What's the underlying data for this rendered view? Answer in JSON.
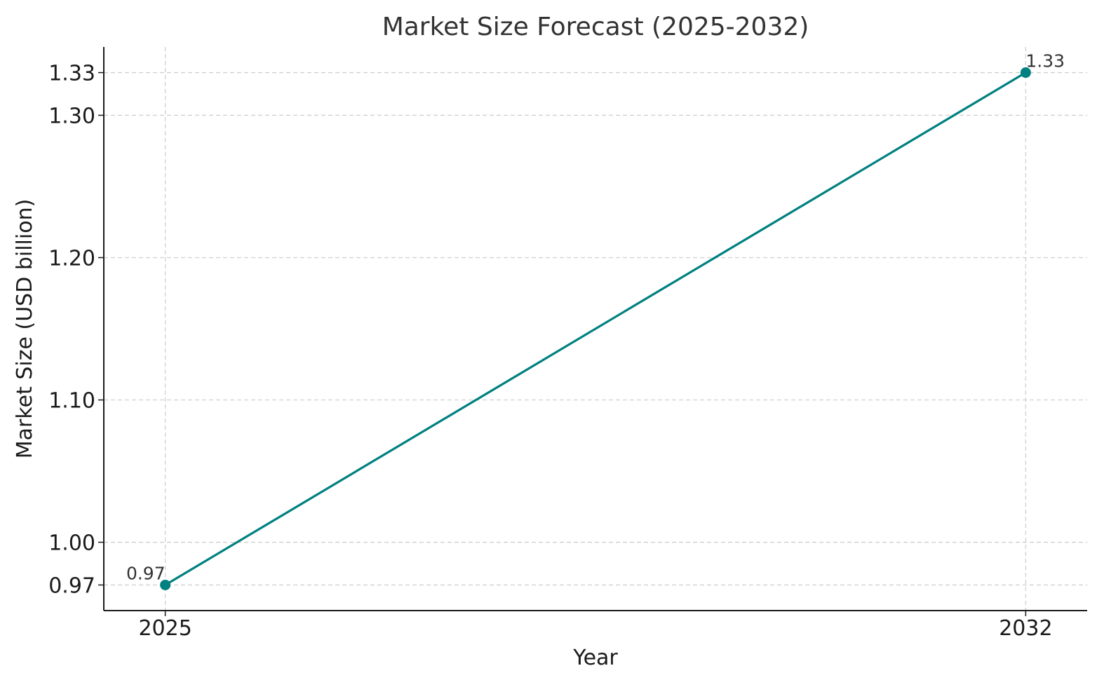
{
  "chart_data": {
    "type": "line",
    "title": "Market Size Forecast (2025-2032)",
    "xlabel": "Year",
    "ylabel": "Market Size (USD billion)",
    "x": [
      2025,
      2032
    ],
    "x_tick_labels": [
      "2025",
      "2032"
    ],
    "y_ticks": [
      0.97,
      1.0,
      1.1,
      1.2,
      1.3,
      1.33
    ],
    "y_tick_labels": [
      "0.97",
      "1.00",
      "1.10",
      "1.20",
      "1.30",
      "1.33"
    ],
    "series": [
      {
        "values": [
          0.97,
          1.33
        ],
        "data_labels": [
          "0.97",
          "1.33"
        ],
        "color": "#008080",
        "marker": "circle"
      }
    ],
    "xlim": [
      2024.5,
      2032.5
    ],
    "ylim": [
      0.952,
      1.348
    ],
    "grid": true,
    "legend": "none"
  }
}
